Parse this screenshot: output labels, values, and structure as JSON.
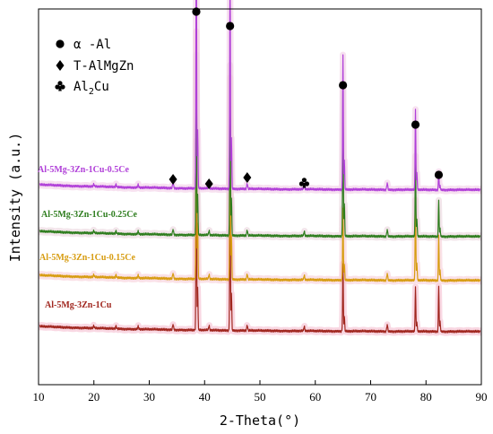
{
  "chart_data": {
    "type": "line",
    "xlabel": "2-Theta(°)",
    "ylabel": "Intensity (a.u.)",
    "xlim": [
      10,
      90
    ],
    "x_ticks": [
      10,
      20,
      30,
      40,
      50,
      60,
      70,
      80,
      90
    ],
    "grid": false,
    "legend_position": "top-left",
    "legend": [
      {
        "symbol": "circle",
        "text": "α -Al"
      },
      {
        "symbol": "diamond",
        "text": "T-AlMgZn"
      },
      {
        "symbol": "club",
        "text": "Al",
        "sub": "2",
        "text_after": "Cu"
      }
    ],
    "series": [
      {
        "name": "Al-5Mg-3Zn-1Cu",
        "color": "#a0261e",
        "glow": "#f4b8cc",
        "baseline": 0.0,
        "peaks": [
          {
            "x": 38.5,
            "h": 0.42
          },
          {
            "x": 44.6,
            "h": 0.38
          },
          {
            "x": 65.0,
            "h": 0.15
          },
          {
            "x": 78.1,
            "h": 0.1
          },
          {
            "x": 82.3,
            "h": 0.1
          }
        ]
      },
      {
        "name": "Al-5Mg-3Zn-1Cu-0.15Ce",
        "color": "#d79c10",
        "glow": "#f6c8d4",
        "baseline": 0.12,
        "peaks": [
          {
            "x": 38.5,
            "h": 0.55
          },
          {
            "x": 44.6,
            "h": 0.45
          },
          {
            "x": 65.0,
            "h": 0.16
          },
          {
            "x": 78.1,
            "h": 0.18
          },
          {
            "x": 82.3,
            "h": 0.1
          }
        ]
      },
      {
        "name": "Al-5Mg-3Zn-1Cu-0.25Ce",
        "color": "#2e7d1e",
        "glow": "#e8d0d8",
        "baseline": 0.27,
        "peaks": [
          {
            "x": 38.5,
            "h": 0.4
          },
          {
            "x": 44.6,
            "h": 0.38
          },
          {
            "x": 65.0,
            "h": 0.33
          },
          {
            "x": 78.1,
            "h": 0.18
          },
          {
            "x": 82.3,
            "h": 0.08
          }
        ]
      },
      {
        "name": "Al-5Mg-3Zn-1Cu-0.5Ce",
        "color": "#b03fd8",
        "glow": "#f0c8e4",
        "baseline": 0.42,
        "peaks": [
          {
            "x": 38.5,
            "h": 0.58
          },
          {
            "x": 44.6,
            "h": 0.52
          },
          {
            "x": 65.0,
            "h": 0.3
          },
          {
            "x": 78.1,
            "h": 0.18
          },
          {
            "x": 82.3,
            "h": 0.04
          }
        ]
      }
    ],
    "annotations": [
      {
        "symbol": "circle",
        "x": 38.5
      },
      {
        "symbol": "circle",
        "x": 44.6
      },
      {
        "symbol": "circle",
        "x": 65.0
      },
      {
        "symbol": "circle",
        "x": 78.1
      },
      {
        "symbol": "circle",
        "x": 82.3
      },
      {
        "symbol": "diamond",
        "x": 34.3
      },
      {
        "symbol": "diamond",
        "x": 40.8
      },
      {
        "symbol": "diamond",
        "x": 47.7
      },
      {
        "symbol": "club",
        "x": 58.0
      }
    ]
  }
}
